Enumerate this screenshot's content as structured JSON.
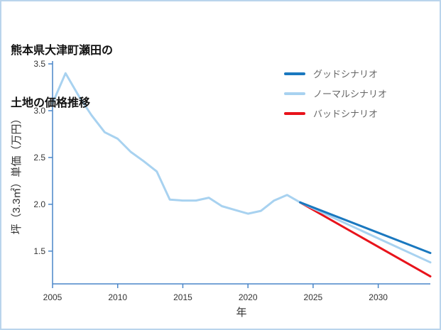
{
  "page": {
    "title_lines": [
      "熊本県大津町瀬田の",
      "土地の価格推移"
    ]
  },
  "chart_data": {
    "type": "line",
    "title": "熊本県大津町瀬田の土地の価格推移",
    "xlabel": "年",
    "ylabel": "坪（3.3㎡）単価（万円）",
    "xlim": [
      2005,
      2034
    ],
    "ylim": [
      1.15,
      3.5
    ],
    "xticks": [
      2005,
      2010,
      2015,
      2020,
      2025,
      2030
    ],
    "yticks": [
      1.5,
      2.0,
      2.5,
      3.0,
      3.5
    ],
    "grid": false,
    "legend_position": "top-right",
    "axis_color": "#4a86c8",
    "tick_label_color": "#333333",
    "history": {
      "color": "#a8d2f0",
      "x": [
        2005,
        2006,
        2007,
        2008,
        2009,
        2010,
        2011,
        2012,
        2013,
        2014,
        2015,
        2016,
        2017,
        2018,
        2019,
        2020,
        2021,
        2022,
        2023,
        2024
      ],
      "values": [
        3.08,
        3.4,
        3.16,
        2.95,
        2.77,
        2.7,
        2.56,
        2.46,
        2.35,
        2.05,
        2.04,
        2.04,
        2.07,
        1.98,
        1.94,
        1.9,
        1.93,
        2.04,
        2.1,
        2.02
      ]
    },
    "series": [
      {
        "name": "グッドシナリオ",
        "color": "#1a78bf",
        "x": [
          2024,
          2034
        ],
        "values": [
          2.02,
          1.48
        ]
      },
      {
        "name": "ノーマルシナリオ",
        "color": "#a8d2f0",
        "x": [
          2024,
          2034
        ],
        "values": [
          2.02,
          1.38
        ]
      },
      {
        "name": "バッドシナリオ",
        "color": "#e8131b",
        "x": [
          2024,
          2034
        ],
        "values": [
          2.02,
          1.23
        ]
      }
    ]
  }
}
